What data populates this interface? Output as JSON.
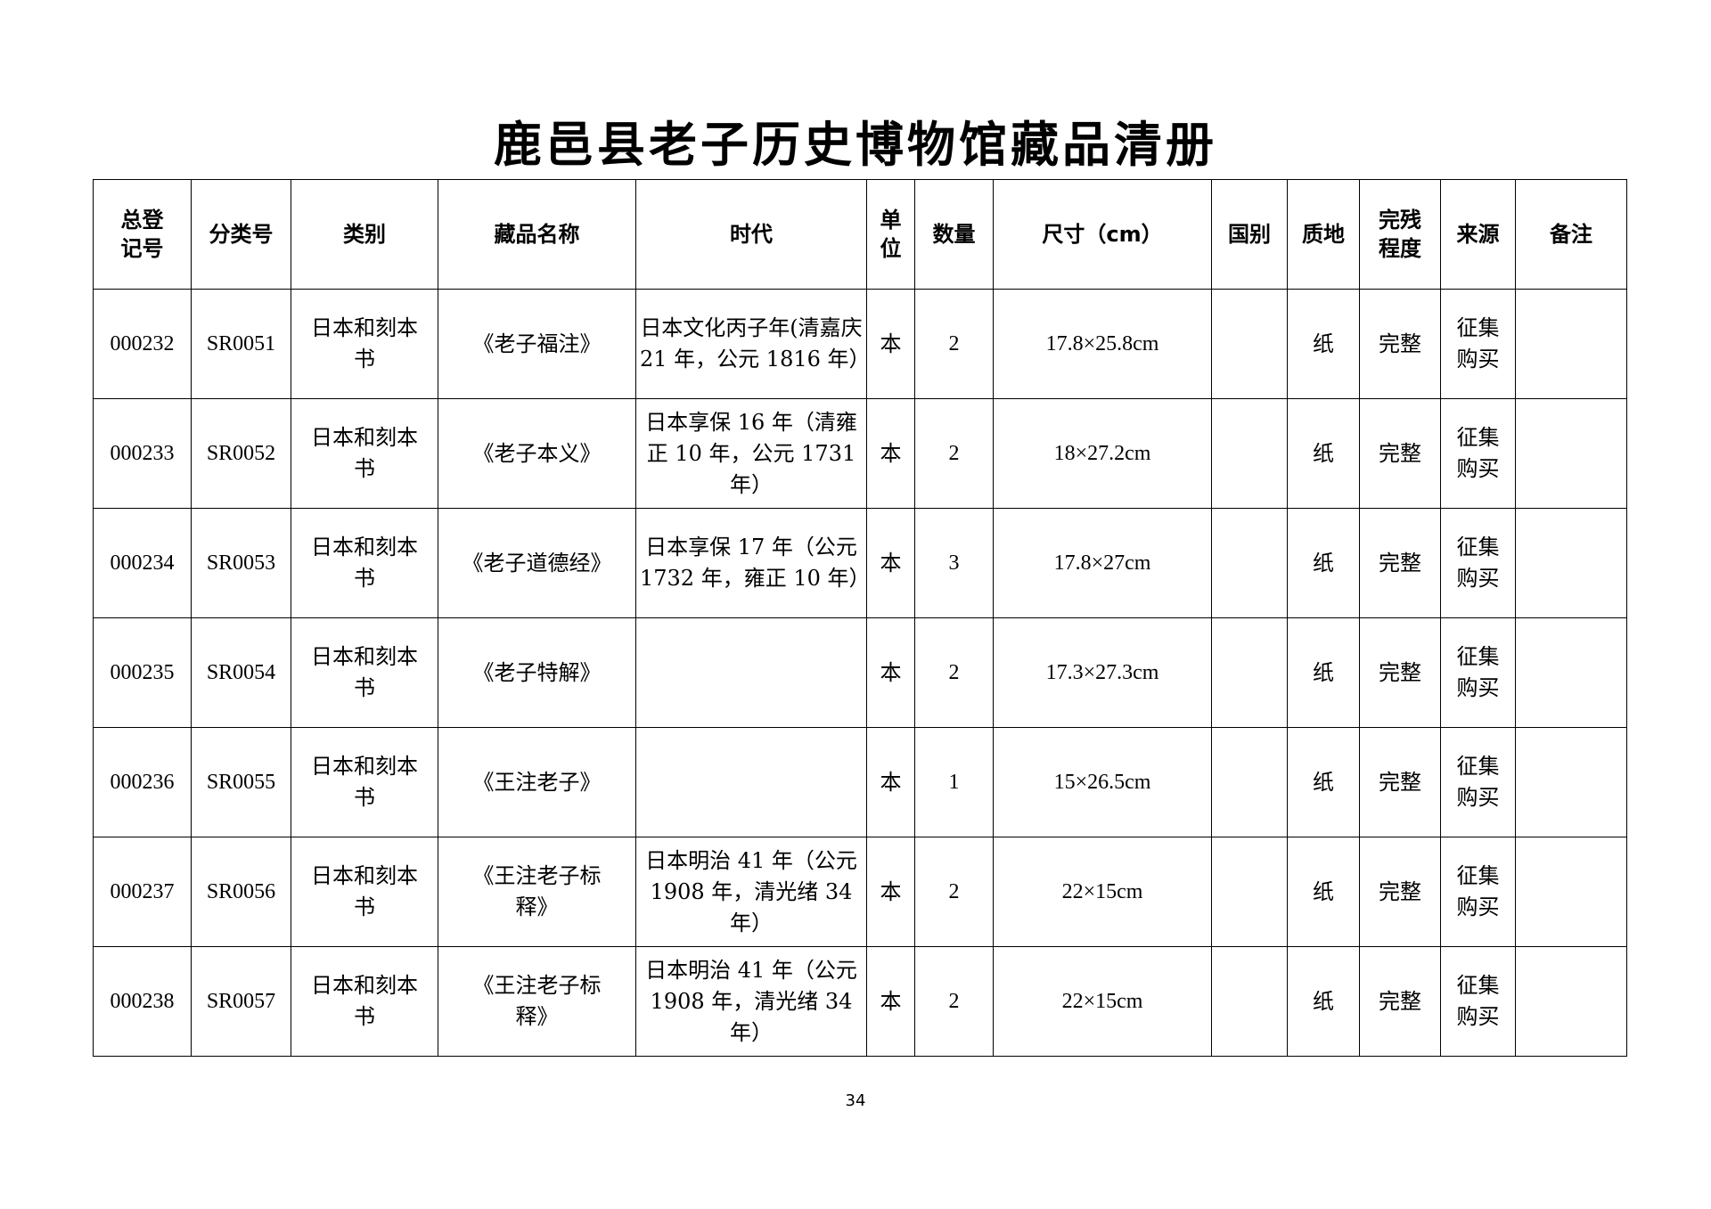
{
  "title": "鹿邑县老子历史博物馆藏品清册",
  "headers": {
    "reg_no": "总登记号",
    "class_no": "分类号",
    "category": "类别",
    "name": "藏品名称",
    "era": "时代",
    "unit": "单位",
    "qty": "数量",
    "size": "尺寸（cm）",
    "country": "国别",
    "material": "质地",
    "condition": "完残程度",
    "source": "来源",
    "remark": "备注"
  },
  "rows": [
    {
      "reg_no": "000232",
      "class_no": "SR0051",
      "category": "日本和刻本书",
      "name": "《老子福注》",
      "era": "日本文化丙子年(清嘉庆 21 年，公元 1816 年）",
      "unit": "本",
      "qty": "2",
      "size": "17.8×25.8cm",
      "country": "",
      "material": "纸",
      "condition": "完整",
      "source": "征集购买",
      "remark": ""
    },
    {
      "reg_no": "000233",
      "class_no": "SR0052",
      "category": "日本和刻本书",
      "name": "《老子本义》",
      "era": "日本享保 16 年（清雍正 10 年，公元 1731 年）",
      "unit": "本",
      "qty": "2",
      "size": "18×27.2cm",
      "country": "",
      "material": "纸",
      "condition": "完整",
      "source": "征集购买",
      "remark": ""
    },
    {
      "reg_no": "000234",
      "class_no": "SR0053",
      "category": "日本和刻本书",
      "name": "《老子道德经》",
      "era": "日本享保 17 年（公元 1732 年，雍正 10 年）",
      "unit": "本",
      "qty": "3",
      "size": "17.8×27cm",
      "country": "",
      "material": "纸",
      "condition": "完整",
      "source": "征集购买",
      "remark": ""
    },
    {
      "reg_no": "000235",
      "class_no": "SR0054",
      "category": "日本和刻本书",
      "name": "《老子特解》",
      "era": "",
      "unit": "本",
      "qty": "2",
      "size": "17.3×27.3cm",
      "country": "",
      "material": "纸",
      "condition": "完整",
      "source": "征集购买",
      "remark": ""
    },
    {
      "reg_no": "000236",
      "class_no": "SR0055",
      "category": "日本和刻本书",
      "name": "《王注老子》",
      "era": "",
      "unit": "本",
      "qty": "1",
      "size": "15×26.5cm",
      "country": "",
      "material": "纸",
      "condition": "完整",
      "source": "征集购买",
      "remark": ""
    },
    {
      "reg_no": "000237",
      "class_no": "SR0056",
      "category": "日本和刻本书",
      "name": "《王注老子标释》",
      "era": "日本明治 41 年（公元 1908 年，清光绪 34 年）",
      "unit": "本",
      "qty": "2",
      "size": "22×15cm",
      "country": "",
      "material": "纸",
      "condition": "完整",
      "source": "征集购买",
      "remark": ""
    },
    {
      "reg_no": "000238",
      "class_no": "SR0057",
      "category": "日本和刻本书",
      "name": "《王注老子标释》",
      "era": "日本明治 41 年（公元 1908 年，清光绪 34 年）",
      "unit": "本",
      "qty": "2",
      "size": "22×15cm",
      "country": "",
      "material": "纸",
      "condition": "完整",
      "source": "征集购买",
      "remark": ""
    }
  ],
  "page_number": "34"
}
